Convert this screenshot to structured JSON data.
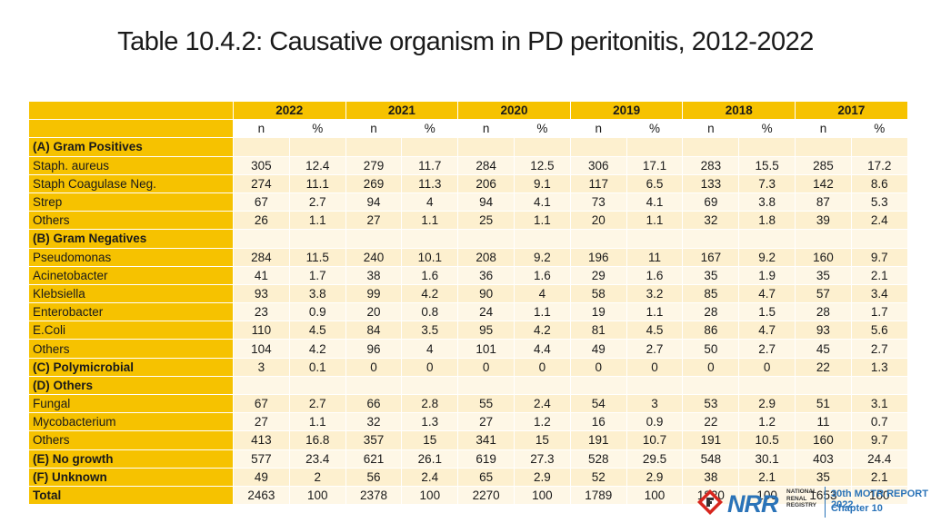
{
  "title": "Table 10.4.2: Causative organism in PD peritonitis, 2012-2022",
  "years": [
    "2022",
    "2021",
    "2020",
    "2019",
    "2018",
    "2017"
  ],
  "subheaders": [
    "n",
    "%",
    "n",
    "%",
    "n",
    "%",
    "n",
    "%",
    "n",
    "%",
    "n",
    "%"
  ],
  "rows": [
    {
      "label": "(A) Gram Positives",
      "bold": true,
      "values": [
        "",
        "",
        "",
        "",
        "",
        "",
        "",
        "",
        "",
        "",
        "",
        ""
      ]
    },
    {
      "label": "Staph. aureus",
      "bold": false,
      "values": [
        "305",
        "12.4",
        "279",
        "11.7",
        "284",
        "12.5",
        "306",
        "17.1",
        "283",
        "15.5",
        "285",
        "17.2"
      ]
    },
    {
      "label": "Staph Coagulase Neg.",
      "bold": false,
      "values": [
        "274",
        "11.1",
        "269",
        "11.3",
        "206",
        "9.1",
        "117",
        "6.5",
        "133",
        "7.3",
        "142",
        "8.6"
      ]
    },
    {
      "label": "Strep",
      "bold": false,
      "values": [
        "67",
        "2.7",
        "94",
        "4",
        "94",
        "4.1",
        "73",
        "4.1",
        "69",
        "3.8",
        "87",
        "5.3"
      ]
    },
    {
      "label": "Others",
      "bold": false,
      "values": [
        "26",
        "1.1",
        "27",
        "1.1",
        "25",
        "1.1",
        "20",
        "1.1",
        "32",
        "1.8",
        "39",
        "2.4"
      ]
    },
    {
      "label": "(B) Gram Negatives",
      "bold": true,
      "values": [
        "",
        "",
        "",
        "",
        "",
        "",
        "",
        "",
        "",
        "",
        "",
        ""
      ]
    },
    {
      "label": "Pseudomonas",
      "bold": false,
      "values": [
        "284",
        "11.5",
        "240",
        "10.1",
        "208",
        "9.2",
        "196",
        "11",
        "167",
        "9.2",
        "160",
        "9.7"
      ]
    },
    {
      "label": "Acinetobacter",
      "bold": false,
      "values": [
        "41",
        "1.7",
        "38",
        "1.6",
        "36",
        "1.6",
        "29",
        "1.6",
        "35",
        "1.9",
        "35",
        "2.1"
      ]
    },
    {
      "label": "Klebsiella",
      "bold": false,
      "values": [
        "93",
        "3.8",
        "99",
        "4.2",
        "90",
        "4",
        "58",
        "3.2",
        "85",
        "4.7",
        "57",
        "3.4"
      ]
    },
    {
      "label": "Enterobacter",
      "bold": false,
      "values": [
        "23",
        "0.9",
        "20",
        "0.8",
        "24",
        "1.1",
        "19",
        "1.1",
        "28",
        "1.5",
        "28",
        "1.7"
      ]
    },
    {
      "label": "E.Coli",
      "bold": false,
      "values": [
        "110",
        "4.5",
        "84",
        "3.5",
        "95",
        "4.2",
        "81",
        "4.5",
        "86",
        "4.7",
        "93",
        "5.6"
      ]
    },
    {
      "label": "Others",
      "bold": false,
      "values": [
        "104",
        "4.2",
        "96",
        "4",
        "101",
        "4.4",
        "49",
        "2.7",
        "50",
        "2.7",
        "45",
        "2.7"
      ]
    },
    {
      "label": "(C) Polymicrobial",
      "bold": true,
      "values": [
        "3",
        "0.1",
        "0",
        "0",
        "0",
        "0",
        "0",
        "0",
        "0",
        "0",
        "22",
        "1.3"
      ]
    },
    {
      "label": "(D) Others",
      "bold": true,
      "values": [
        "",
        "",
        "",
        "",
        "",
        "",
        "",
        "",
        "",
        "",
        "",
        ""
      ]
    },
    {
      "label": "Fungal",
      "bold": false,
      "values": [
        "67",
        "2.7",
        "66",
        "2.8",
        "55",
        "2.4",
        "54",
        "3",
        "53",
        "2.9",
        "51",
        "3.1"
      ]
    },
    {
      "label": "Mycobacterium",
      "bold": false,
      "values": [
        "27",
        "1.1",
        "32",
        "1.3",
        "27",
        "1.2",
        "16",
        "0.9",
        "22",
        "1.2",
        "11",
        "0.7"
      ]
    },
    {
      "label": "Others",
      "bold": false,
      "values": [
        "413",
        "16.8",
        "357",
        "15",
        "341",
        "15",
        "191",
        "10.7",
        "191",
        "10.5",
        "160",
        "9.7"
      ]
    },
    {
      "label": "(E) No growth",
      "bold": true,
      "values": [
        "577",
        "23.4",
        "621",
        "26.1",
        "619",
        "27.3",
        "528",
        "29.5",
        "548",
        "30.1",
        "403",
        "24.4"
      ]
    },
    {
      "label": "(F) Unknown",
      "bold": true,
      "values": [
        "49",
        "2",
        "56",
        "2.4",
        "65",
        "2.9",
        "52",
        "2.9",
        "38",
        "2.1",
        "35",
        "2.1"
      ]
    },
    {
      "label": "Total",
      "bold": true,
      "values": [
        "2463",
        "100",
        "2378",
        "100",
        "2270",
        "100",
        "1789",
        "100",
        "1820",
        "100",
        "1653",
        "100"
      ]
    }
  ],
  "footer": {
    "logo_text": "NRR",
    "registry_line1": "NATIONAL",
    "registry_line2": "RENAL",
    "registry_line3": "REGISTRY",
    "report_title": "30th MOTR REPORT 2022",
    "chapter": "Chapter 10",
    "logo_icon": "nrr-logo-icon",
    "brand_color": "#2a73b8",
    "header_color": "#f6c200",
    "row_color": "#fdf0cf"
  }
}
